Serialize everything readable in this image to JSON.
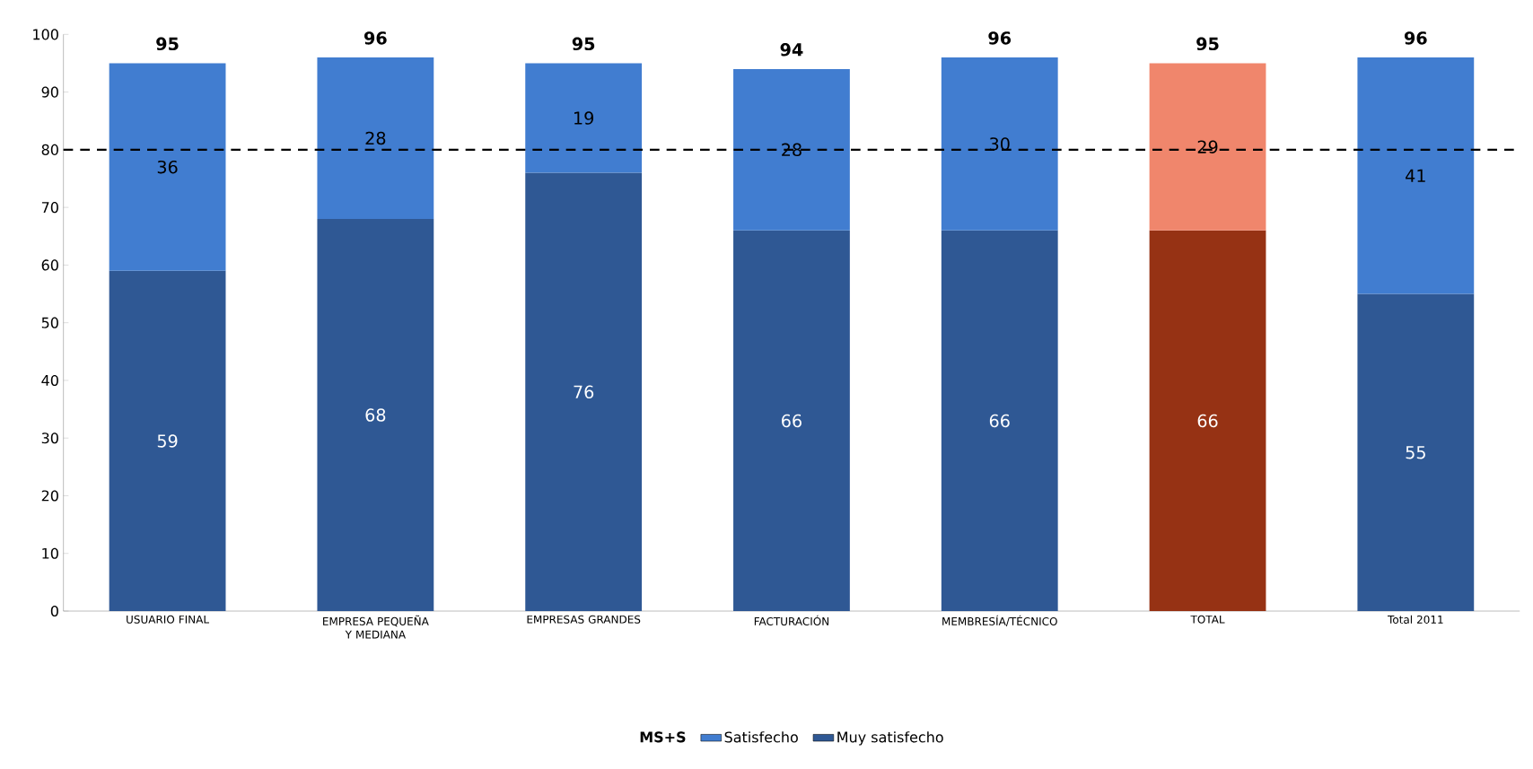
{
  "chart_data": {
    "type": "bar",
    "stacked": true,
    "categories": [
      "USUARIO FINAL",
      "EMPRESA PEQUEÑA Y MEDIANA",
      "EMPRESAS GRANDES",
      "FACTURACIÓN",
      "MEMBRESÍA/TÉCNICO",
      "TOTAL",
      "Total 2011"
    ],
    "series": [
      {
        "name": "Muy satisfecho",
        "color": "#2f5894",
        "colors": [
          "#2f5894",
          "#2f5894",
          "#2f5894",
          "#2f5894",
          "#2f5894",
          "#963214",
          "#2f5894"
        ],
        "values": [
          59,
          68,
          76,
          66,
          66,
          66,
          55
        ]
      },
      {
        "name": "Satisfecho",
        "color": "#417dd0",
        "colors": [
          "#417dd0",
          "#417dd0",
          "#417dd0",
          "#417dd0",
          "#417dd0",
          "#f0866c",
          "#417dd0"
        ],
        "values": [
          36,
          28,
          19,
          28,
          30,
          29,
          41
        ]
      }
    ],
    "totals": [
      "95",
      "96",
      "95",
      "94",
      "96",
      "95",
      "96"
    ],
    "data_labels": true,
    "legend": "bottom",
    "legend_title": "MS+S",
    "ylim": [
      0,
      100
    ],
    "yticks": [
      0,
      10,
      20,
      30,
      40,
      50,
      60,
      70,
      80,
      90,
      100
    ],
    "grid": false,
    "ref_lines": [
      {
        "axis": "y",
        "value": 80,
        "color": "#000000",
        "line_style": "dashed"
      }
    ]
  }
}
